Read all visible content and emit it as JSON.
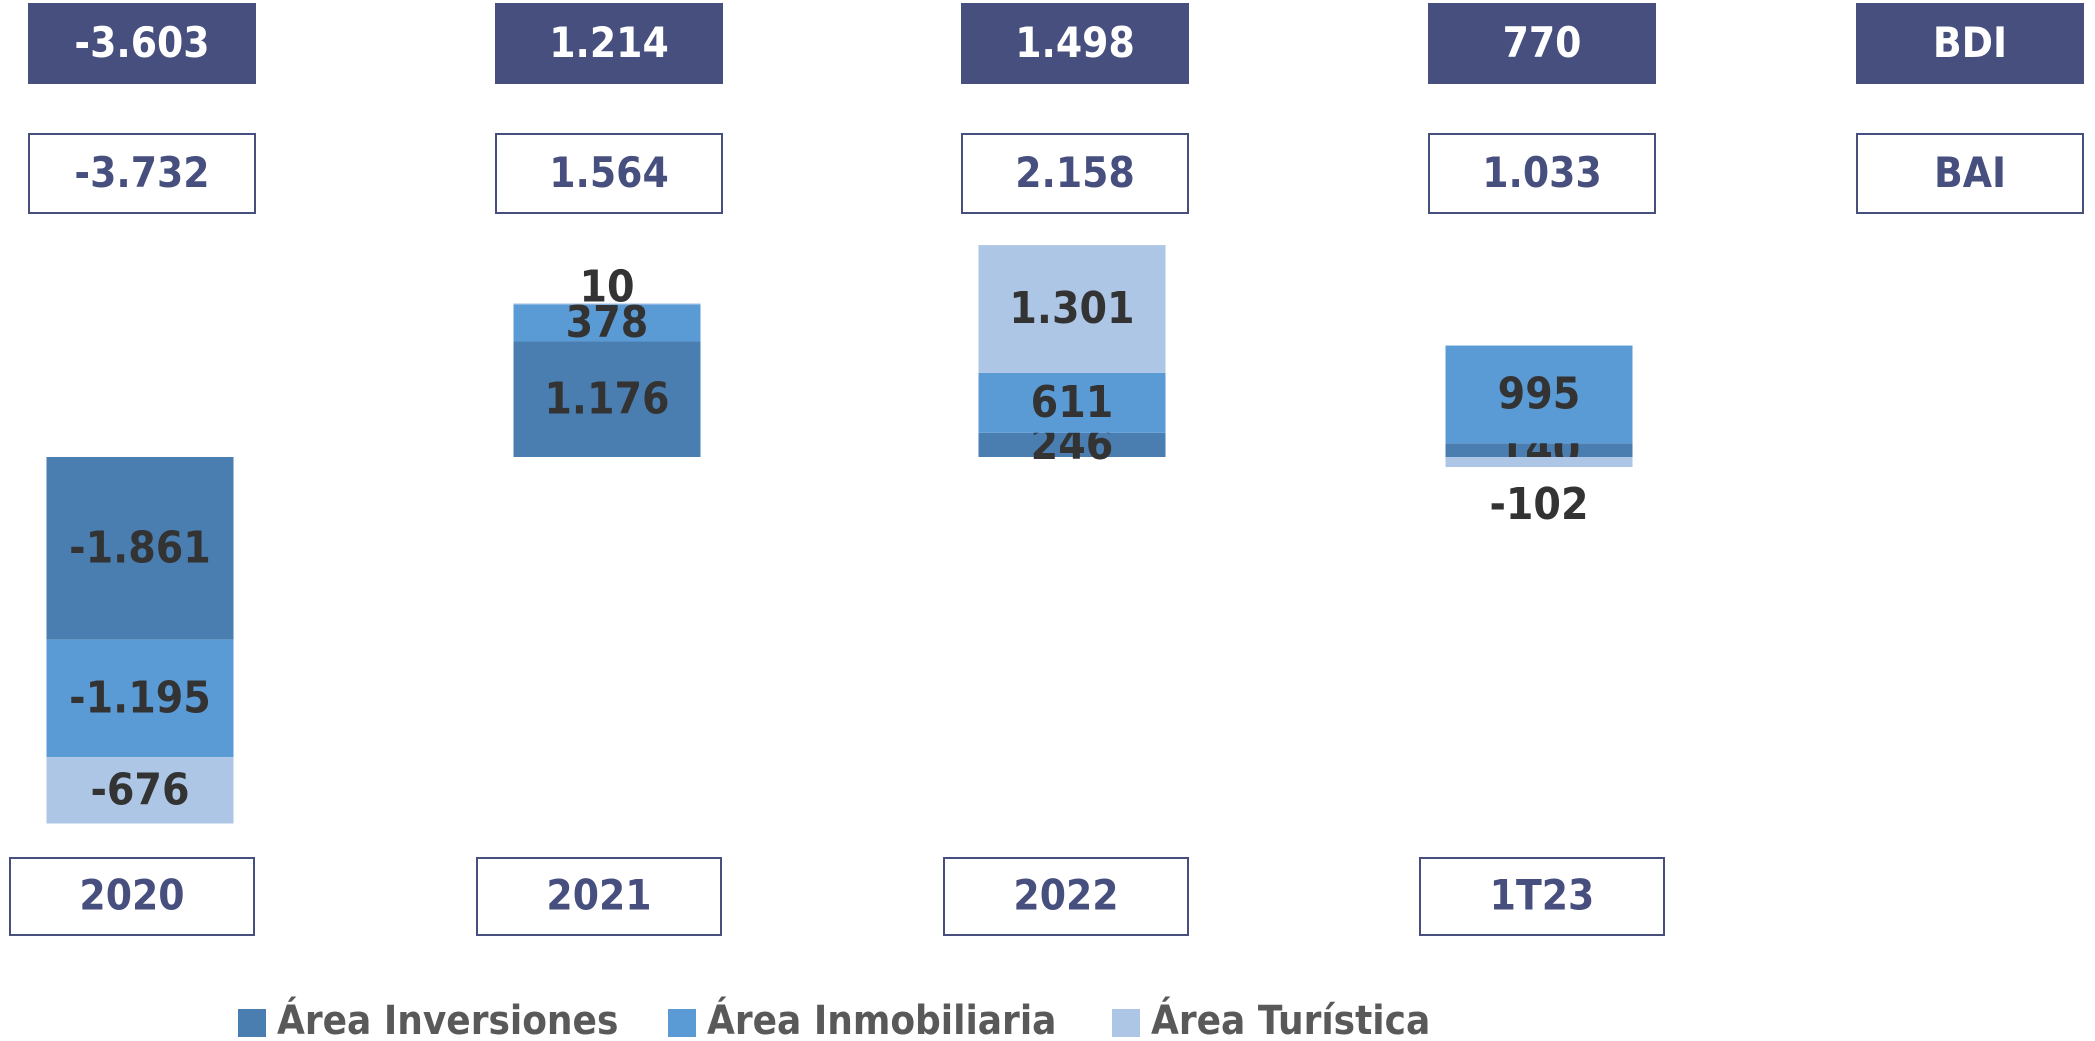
{
  "chart_data": {
    "type": "bar",
    "stacked": true,
    "categories": [
      "2020",
      "2021",
      "2022",
      "1T23"
    ],
    "series": [
      {
        "name": "Área Inversiones",
        "color": "#4a7eb0",
        "values": [
          -1861,
          1176,
          246,
          140
        ],
        "value_labels": [
          "-1.861",
          "1.176",
          "246",
          "140"
        ]
      },
      {
        "name": "Área Inmobiliaria",
        "color": "#5b9bd5",
        "values": [
          -1195,
          378,
          611,
          995
        ],
        "value_labels": [
          "-1.195",
          "378",
          "611",
          "995"
        ]
      },
      {
        "name": "Área Turística",
        "color": "#adc6e6",
        "values": [
          -676,
          10,
          1301,
          -102
        ],
        "value_labels": [
          "-676",
          "10",
          "1.301",
          "-102"
        ]
      }
    ],
    "rows": [
      {
        "name": "BDI",
        "values": [
          -3603,
          1214,
          1498,
          770
        ],
        "value_labels": [
          "-3.603",
          "1.214",
          "1.498",
          "770"
        ],
        "filled": true,
        "color": "#474f7e"
      },
      {
        "name": "BAI",
        "values": [
          -3732,
          1564,
          2158,
          1033
        ],
        "value_labels": [
          "-3.732",
          "1.564",
          "2.158",
          "1.033"
        ],
        "filled": false,
        "color": "#474f7e"
      }
    ]
  }
}
